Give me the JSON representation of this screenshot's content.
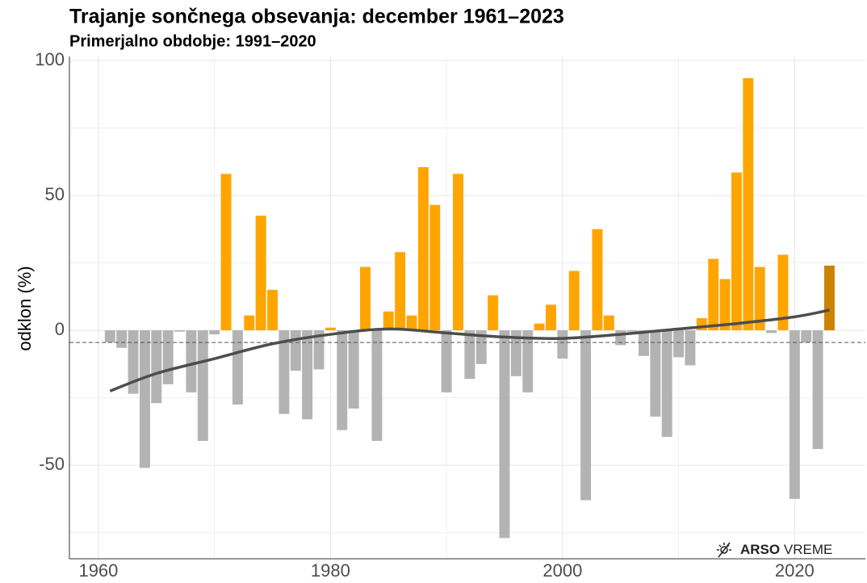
{
  "chart_data": {
    "type": "bar",
    "title": "Trajanje sončnega obsevanja: december 1961–2023",
    "subtitle": "Primerjalno obdobje: 1991–2020",
    "ylabel": "odklon (%)",
    "x": [
      1961,
      1962,
      1963,
      1964,
      1965,
      1966,
      1967,
      1968,
      1969,
      1970,
      1971,
      1972,
      1973,
      1974,
      1975,
      1976,
      1977,
      1978,
      1979,
      1980,
      1981,
      1982,
      1983,
      1984,
      1985,
      1986,
      1987,
      1988,
      1989,
      1990,
      1991,
      1992,
      1993,
      1994,
      1995,
      1996,
      1997,
      1998,
      1999,
      2000,
      2001,
      2002,
      2003,
      2004,
      2005,
      2006,
      2007,
      2008,
      2009,
      2010,
      2011,
      2012,
      2013,
      2014,
      2015,
      2016,
      2017,
      2018,
      2019,
      2020,
      2021,
      2022,
      2023
    ],
    "values": [
      -4.5,
      -6.5,
      -23.5,
      -51,
      -27,
      -20,
      -0.5,
      -23,
      -41,
      -1.5,
      58,
      -27.5,
      5.5,
      42.5,
      15,
      -31,
      -15,
      -33,
      -14.5,
      1,
      -37,
      -29,
      23.5,
      -41,
      7,
      29,
      5.5,
      60.5,
      46.5,
      -23,
      58,
      -18,
      -12.5,
      13,
      -77,
      -17,
      -23,
      2.5,
      9.5,
      -10.5,
      22,
      -63,
      37.5,
      5.5,
      -5.5,
      -0.5,
      -9.5,
      -32,
      -39.5,
      -10,
      -13,
      4.5,
      26.5,
      19,
      58.5,
      93.5,
      23.5,
      -1,
      28,
      -62.5,
      -4.5,
      -44,
      24
    ],
    "colors": {
      "positive": "#ffa500",
      "negative": "#b3b3b3",
      "last": "#cc8400"
    },
    "trend": {
      "color": "#4d4d4d",
      "x": [
        1961,
        1965,
        1970,
        1975,
        1980,
        1985,
        1990,
        1995,
        2000,
        2005,
        2010,
        2015,
        2020,
        2023
      ],
      "values": [
        -22.5,
        -16,
        -10.5,
        -5,
        -1.5,
        0.5,
        -1,
        -2.5,
        -3,
        -1.5,
        0.5,
        2.5,
        5,
        7.5
      ]
    },
    "reference_line": -4.5,
    "xlim": [
      1957.5,
      2026.1
    ],
    "ylim": [
      -84.7,
      101.5
    ],
    "xticks": [
      1960,
      1980,
      2000,
      2020
    ],
    "yticks": [
      -50,
      0,
      50,
      100
    ],
    "xminor": [
      1970,
      1990,
      2010
    ],
    "yminor": [
      -75,
      -25,
      25,
      75
    ],
    "grid": true,
    "logo": [
      "ARSO",
      "VREME"
    ]
  }
}
